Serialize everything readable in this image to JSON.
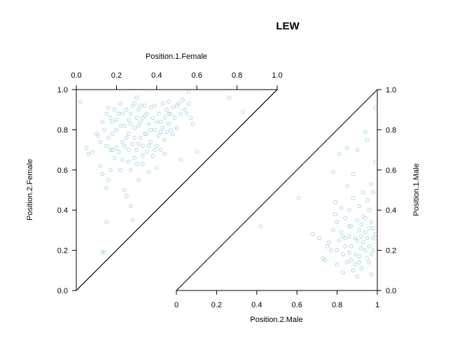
{
  "chart_data": {
    "type": "scatter",
    "title": "LEW",
    "point_color": "#9ecfdc",
    "panels": [
      {
        "name": "female",
        "xlabel": "Position.1.Female",
        "ylabel": "Position.2.Female",
        "xlim": [
          0,
          1
        ],
        "ylim": [
          0,
          1
        ],
        "x_ticks": [
          "0.0",
          "0.2",
          "0.4",
          "0.6",
          "0.8",
          "1.0"
        ],
        "y_ticks": [
          "0.0",
          "0.2",
          "0.4",
          "0.6",
          "0.8",
          "1.0"
        ],
        "x_axis_side": "top",
        "y_axis_side": "left",
        "points": [
          [
            0.02,
            0.94
          ],
          [
            0.05,
            0.71
          ],
          [
            0.06,
            0.68
          ],
          [
            0.08,
            0.69
          ],
          [
            0.1,
            0.78
          ],
          [
            0.11,
            0.77
          ],
          [
            0.12,
            0.74
          ],
          [
            0.12,
            0.62
          ],
          [
            0.13,
            0.58
          ],
          [
            0.13,
            0.19
          ],
          [
            0.14,
            0.19
          ],
          [
            0.15,
            0.34
          ],
          [
            0.15,
            0.51
          ],
          [
            0.16,
            0.55
          ],
          [
            0.17,
            0.6
          ],
          [
            0.13,
            0.84
          ],
          [
            0.14,
            0.8
          ],
          [
            0.15,
            0.88
          ],
          [
            0.16,
            0.91
          ],
          [
            0.17,
            0.86
          ],
          [
            0.18,
            0.84
          ],
          [
            0.18,
            0.7
          ],
          [
            0.19,
            0.66
          ],
          [
            0.2,
            0.71
          ],
          [
            0.2,
            0.8
          ],
          [
            0.21,
            0.88
          ],
          [
            0.22,
            0.93
          ],
          [
            0.22,
            0.82
          ],
          [
            0.23,
            0.74
          ],
          [
            0.23,
            0.65
          ],
          [
            0.24,
            0.72
          ],
          [
            0.24,
            0.5
          ],
          [
            0.25,
            0.47
          ],
          [
            0.25,
            0.9
          ],
          [
            0.26,
            0.85
          ],
          [
            0.26,
            0.78
          ],
          [
            0.27,
            0.6
          ],
          [
            0.27,
            0.42
          ],
          [
            0.28,
            0.92
          ],
          [
            0.28,
            0.73
          ],
          [
            0.29,
            0.81
          ],
          [
            0.29,
            0.66
          ],
          [
            0.3,
            0.96
          ],
          [
            0.3,
            0.86
          ],
          [
            0.3,
            0.7
          ],
          [
            0.31,
            0.55
          ],
          [
            0.31,
            0.9
          ],
          [
            0.32,
            0.76
          ],
          [
            0.32,
            0.84
          ],
          [
            0.33,
            0.72
          ],
          [
            0.33,
            0.63
          ],
          [
            0.34,
            0.87
          ],
          [
            0.34,
            0.92
          ],
          [
            0.35,
            0.78
          ],
          [
            0.35,
            0.69
          ],
          [
            0.36,
            0.83
          ],
          [
            0.36,
            0.59
          ],
          [
            0.37,
            0.91
          ],
          [
            0.37,
            0.74
          ],
          [
            0.38,
            0.86
          ],
          [
            0.38,
            0.67
          ],
          [
            0.39,
            0.8
          ],
          [
            0.39,
            0.92
          ],
          [
            0.4,
            0.72
          ],
          [
            0.4,
            0.61
          ],
          [
            0.41,
            0.88
          ],
          [
            0.41,
            0.77
          ],
          [
            0.42,
            0.84
          ],
          [
            0.42,
            0.7
          ],
          [
            0.43,
            0.93
          ],
          [
            0.43,
            0.81
          ],
          [
            0.44,
            0.75
          ],
          [
            0.44,
            0.86
          ],
          [
            0.45,
            0.79
          ],
          [
            0.45,
            0.9
          ],
          [
            0.46,
            0.94
          ],
          [
            0.46,
            0.83
          ],
          [
            0.47,
            0.88
          ],
          [
            0.48,
            0.91
          ],
          [
            0.48,
            0.78
          ],
          [
            0.49,
            0.86
          ],
          [
            0.5,
            0.92
          ],
          [
            0.5,
            0.81
          ],
          [
            0.51,
            0.93
          ],
          [
            0.52,
            0.88
          ],
          [
            0.52,
            0.65
          ],
          [
            0.53,
            0.95
          ],
          [
            0.54,
            0.9
          ],
          [
            0.55,
            0.88
          ],
          [
            0.56,
            0.93
          ],
          [
            0.57,
            0.86
          ],
          [
            0.58,
            0.83
          ],
          [
            0.6,
            0.69
          ],
          [
            0.76,
            0.96
          ],
          [
            0.83,
            0.89
          ],
          [
            0.56,
            0.99
          ],
          [
            0.2,
            0.85
          ],
          [
            0.21,
            0.69
          ],
          [
            0.22,
            0.6
          ],
          [
            0.26,
            0.64
          ],
          [
            0.18,
            0.78
          ],
          [
            0.19,
            0.9
          ],
          [
            0.27,
            0.88
          ],
          [
            0.29,
            0.76
          ],
          [
            0.31,
            0.82
          ],
          [
            0.33,
            0.67
          ],
          [
            0.35,
            0.88
          ],
          [
            0.37,
            0.8
          ],
          [
            0.39,
            0.7
          ],
          [
            0.28,
            0.35
          ],
          [
            0.15,
            0.72
          ],
          [
            0.16,
            0.76
          ],
          [
            0.17,
            0.7
          ],
          [
            0.24,
            0.82
          ],
          [
            0.26,
            0.7
          ],
          [
            0.3,
            0.63
          ],
          [
            0.32,
            0.92
          ],
          [
            0.34,
            0.78
          ],
          [
            0.36,
            0.72
          ],
          [
            0.4,
            0.84
          ],
          [
            0.42,
            0.79
          ],
          [
            0.44,
            0.68
          ],
          [
            0.46,
            0.88
          ],
          [
            0.47,
            0.8
          ],
          [
            0.23,
            0.88
          ],
          [
            0.25,
            0.76
          ],
          [
            0.27,
            0.83
          ],
          [
            0.29,
            0.93
          ],
          [
            0.31,
            0.73
          ],
          [
            0.33,
            0.86
          ]
        ]
      },
      {
        "name": "male",
        "xlabel": "Position.2.Male",
        "ylabel": "Position.1.Male",
        "xlim": [
          0,
          1
        ],
        "ylim": [
          0,
          1
        ],
        "x_ticks": [
          "0",
          "0.2",
          "0.4",
          "0.6",
          "0.8",
          "1"
        ],
        "y_ticks": [
          "0.0",
          "0.2",
          "0.4",
          "0.6",
          "0.8",
          "1.0"
        ],
        "x_axis_side": "bottom",
        "y_axis_side": "right",
        "points": [
          [
            0.42,
            0.32
          ],
          [
            0.61,
            0.46
          ],
          [
            0.68,
            0.28
          ],
          [
            0.71,
            0.26
          ],
          [
            0.73,
            0.16
          ],
          [
            0.74,
            0.15
          ],
          [
            0.75,
            0.22
          ],
          [
            0.76,
            0.24
          ],
          [
            0.77,
            0.2
          ],
          [
            0.78,
            0.3
          ],
          [
            0.78,
            0.59
          ],
          [
            0.79,
            0.38
          ],
          [
            0.79,
            0.44
          ],
          [
            0.8,
            0.13
          ],
          [
            0.8,
            0.2
          ],
          [
            0.8,
            0.34
          ],
          [
            0.81,
            0.25
          ],
          [
            0.81,
            0.68
          ],
          [
            0.82,
            0.41
          ],
          [
            0.82,
            0.29
          ],
          [
            0.83,
            0.18
          ],
          [
            0.83,
            0.09
          ],
          [
            0.84,
            0.22
          ],
          [
            0.84,
            0.36
          ],
          [
            0.85,
            0.52
          ],
          [
            0.85,
            0.71
          ],
          [
            0.85,
            0.14
          ],
          [
            0.86,
            0.27
          ],
          [
            0.86,
            0.4
          ],
          [
            0.86,
            0.19
          ],
          [
            0.87,
            0.22
          ],
          [
            0.87,
            0.32
          ],
          [
            0.88,
            0.1
          ],
          [
            0.88,
            0.46
          ],
          [
            0.88,
            0.58
          ],
          [
            0.89,
            0.18
          ],
          [
            0.89,
            0.26
          ],
          [
            0.9,
            0.35
          ],
          [
            0.9,
            0.07
          ],
          [
            0.9,
            0.7
          ],
          [
            0.91,
            0.14
          ],
          [
            0.91,
            0.3
          ],
          [
            0.91,
            0.42
          ],
          [
            0.92,
            0.21
          ],
          [
            0.92,
            0.33
          ],
          [
            0.92,
            0.11
          ],
          [
            0.93,
            0.24
          ],
          [
            0.93,
            0.37
          ],
          [
            0.93,
            0.49
          ],
          [
            0.94,
            0.2
          ],
          [
            0.94,
            0.29
          ],
          [
            0.94,
            0.79
          ],
          [
            0.95,
            0.26
          ],
          [
            0.95,
            0.16
          ],
          [
            0.95,
            0.75
          ],
          [
            0.96,
            0.31
          ],
          [
            0.96,
            0.4
          ],
          [
            0.96,
            0.22
          ],
          [
            0.97,
            0.18
          ],
          [
            0.97,
            0.34
          ],
          [
            0.97,
            0.08
          ],
          [
            0.98,
            0.26
          ],
          [
            0.98,
            0.49
          ],
          [
            0.98,
            0.31
          ],
          [
            0.99,
            0.91
          ],
          [
            0.99,
            0.64
          ],
          [
            0.99,
            0.28
          ],
          [
            0.84,
            0.26
          ],
          [
            0.87,
            0.15
          ],
          [
            0.89,
            0.13
          ],
          [
            0.92,
            0.27
          ],
          [
            0.94,
            0.36
          ],
          [
            0.96,
            0.14
          ],
          [
            0.98,
            0.2
          ],
          [
            0.95,
            0.45
          ],
          [
            0.9,
            0.25
          ],
          [
            0.86,
            0.32
          ],
          [
            0.83,
            0.27
          ],
          [
            0.97,
            0.53
          ],
          [
            0.91,
            0.17
          ]
        ]
      }
    ]
  }
}
